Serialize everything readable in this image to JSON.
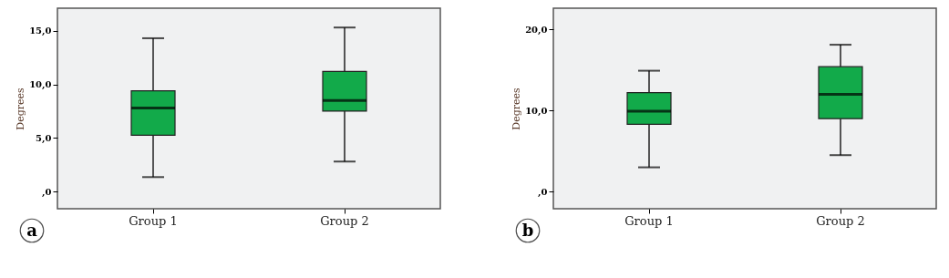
{
  "chart_data": [
    {
      "type": "box",
      "categories": [
        "Group 1",
        "Group 2"
      ],
      "ylabel": "Degrees",
      "ylim": [
        -1.6,
        17.1
      ],
      "yticks": [
        {
          "value": 0,
          "label": ",0"
        },
        {
          "value": 5,
          "label": "5,0"
        },
        {
          "value": 10,
          "label": "10,0"
        },
        {
          "value": 15,
          "label": "15,0"
        }
      ],
      "grid": false,
      "annotations": [
        "a"
      ],
      "series": [
        {
          "color": "#12aa4a",
          "boxes": [
            {
              "low": 1.35,
              "q1": 5.25,
              "median": 7.8,
              "q3": 9.4,
              "high": 14.3
            },
            {
              "low": 2.8,
              "q1": 7.5,
              "median": 8.5,
              "q3": 11.2,
              "high": 15.3
            }
          ]
        }
      ]
    },
    {
      "type": "box",
      "categories": [
        "Group 1",
        "Group 2"
      ],
      "ylabel": "Degrees",
      "ylim": [
        -2.1,
        22.6
      ],
      "yticks": [
        {
          "value": 0,
          "label": ",0"
        },
        {
          "value": 10,
          "label": "10,0"
        },
        {
          "value": 20,
          "label": "20,0"
        }
      ],
      "grid": false,
      "annotations": [
        "b"
      ],
      "series": [
        {
          "color": "#12aa4a",
          "boxes": [
            {
              "low": 3.0,
              "q1": 8.3,
              "median": 9.9,
              "q3": 12.2,
              "high": 14.9
            },
            {
              "low": 4.5,
              "q1": 9.0,
              "median": 12.0,
              "q3": 15.4,
              "high": 18.1
            }
          ]
        }
      ]
    }
  ]
}
